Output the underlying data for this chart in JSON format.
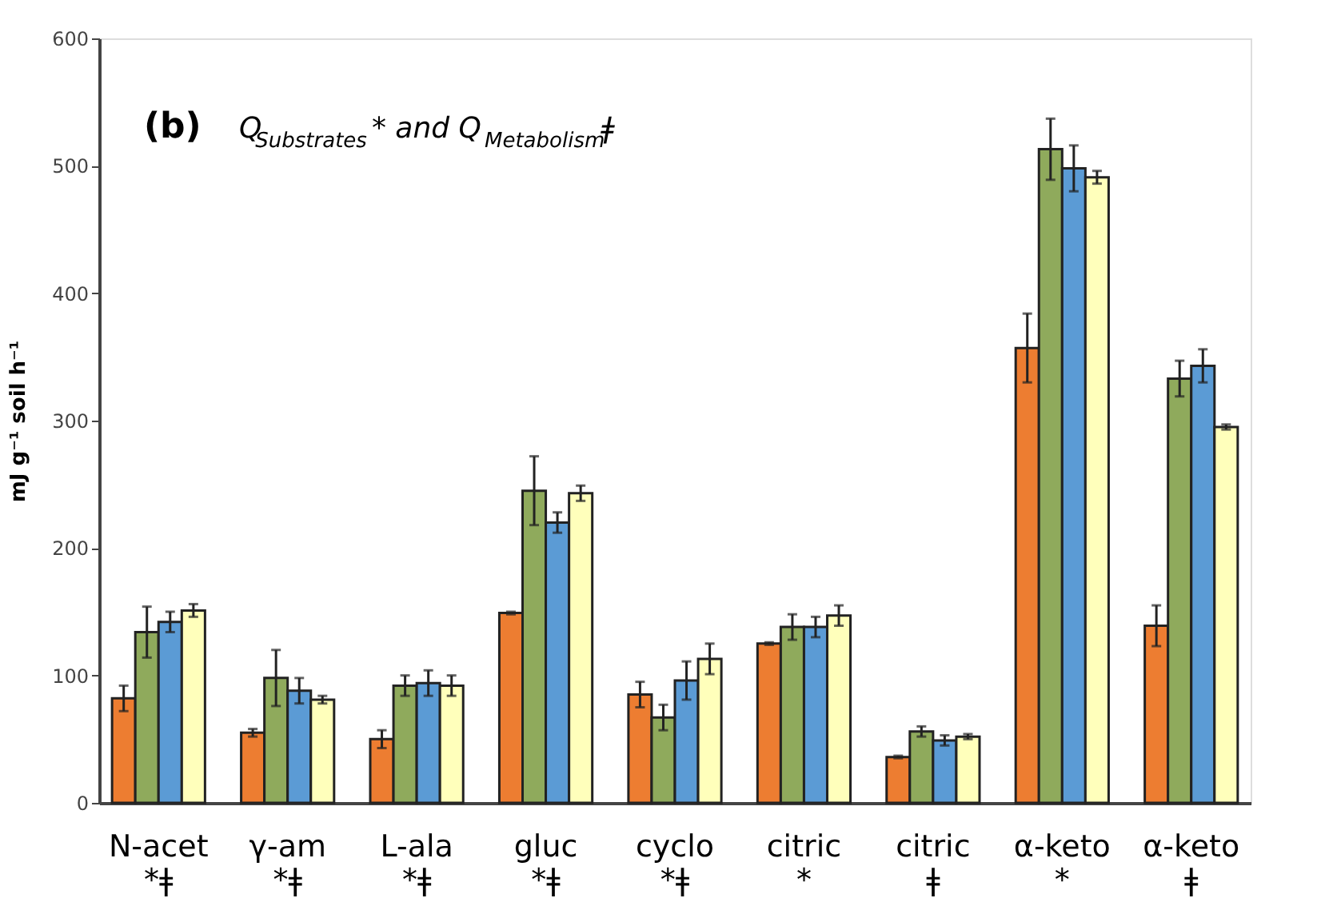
{
  "chart_data": {
    "type": "bar",
    "title": "(b) Q$_{Substrates}$* and Q$_{Metabolism}$ǂ",
    "ylabel": "mJ g⁻¹ soil h⁻¹",
    "categories": [
      "N-acet\n*ǂ",
      "γ-am\n*ǂ",
      "L-ala\n*ǂ",
      "gluc\n*ǂ",
      "cyclo\n*ǂ",
      "citric\n*",
      "citric\nǂ",
      "α-keto\n*",
      "α-keto\nǂ"
    ],
    "series": [
      {
        "color": "#ed7d31",
        "values": [
          82,
          55,
          50,
          149,
          85,
          125,
          36,
          357,
          139
        ],
        "errors": [
          10,
          3,
          7,
          1,
          10,
          1,
          1,
          27,
          16
        ]
      },
      {
        "color": "#8faa5c",
        "values": [
          134,
          98,
          92,
          245,
          67,
          138,
          56,
          513,
          333
        ],
        "errors": [
          20,
          22,
          8,
          27,
          10,
          10,
          4,
          24,
          14
        ]
      },
      {
        "color": "#5b9bd5",
        "values": [
          142,
          88,
          94,
          220,
          96,
          138,
          49,
          498,
          343
        ],
        "errors": [
          8,
          10,
          10,
          8,
          15,
          8,
          4,
          18,
          13
        ]
      },
      {
        "color": "#ffffbb",
        "values": [
          151,
          81,
          92,
          243,
          113,
          147,
          52,
          491,
          295
        ],
        "errors": [
          5,
          3,
          8,
          6,
          12,
          8,
          2,
          5,
          2
        ]
      }
    ],
    "ylim": [
      0,
      600
    ],
    "yticks": [
      0,
      100,
      200,
      300,
      400,
      500,
      600
    ],
    "grid": false,
    "legend": false
  }
}
